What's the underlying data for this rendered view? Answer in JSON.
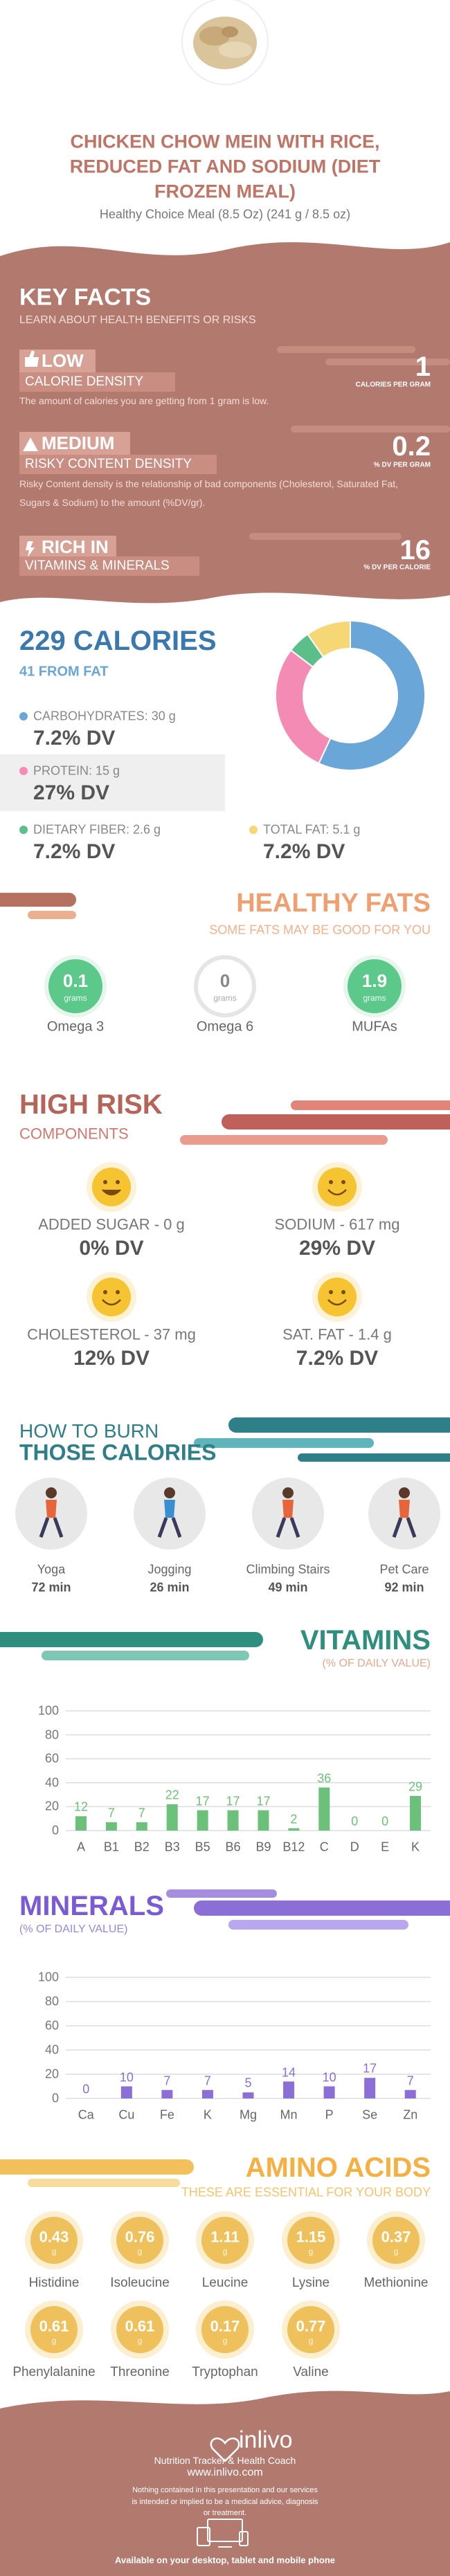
{
  "header": {
    "title_lines": [
      "CHICKEN CHOW MEIN WITH RICE,",
      "REDUCED FAT AND SODIUM (DIET",
      "FROZEN MEAL)"
    ],
    "subtitle": "Healthy Choice Meal (8.5 Oz) (241 g / 8.5 oz)"
  },
  "key_facts": {
    "title": "KEY FACTS",
    "subtitle": "LEARN ABOUT HEALTH BENEFITS OR RISKS",
    "rows": [
      {
        "level": "LOW",
        "label": "CALORIE DENSITY",
        "description": "The amount of calories you are getting from 1 gram is low.",
        "value": 1,
        "unit": "CALORIES PER GRAM"
      },
      {
        "level": "MEDIUM",
        "label": "RISKY CONTENT DENSITY",
        "description": "Risky Content density is the relationship of bad components (Cholesterol, Saturated Fat, Sugars & Sodium) to the amount (%DV/gr).",
        "value": 0.2,
        "unit": "% DV PER GRAM"
      },
      {
        "level": "RICH  IN",
        "label": "VITAMINS & MINERALS",
        "value": 16,
        "unit": "% DV PER CALORIE"
      }
    ]
  },
  "calories": {
    "title": "229 CALORIES",
    "subtitle": "41 FROM FAT",
    "items": [
      {
        "label": "CARBOHYDRATES: 30 g",
        "dv": "7.2% DV"
      },
      {
        "label": "PROTEIN: 15 g",
        "dv": "27% DV"
      },
      {
        "label": "DIETARY FIBER: 2.6 g",
        "dv": "7.2% DV"
      },
      {
        "label": "TOTAL FAT: 5.1 g",
        "dv": "7.2% DV"
      }
    ]
  },
  "healthy_fats": {
    "title": "HEALTHY FATS",
    "subtitle": "SOME FATS MAY BE GOOD FOR YOU",
    "unit": "grams",
    "items": [
      {
        "name": "Omega 3",
        "value": 0.1
      },
      {
        "name": "Omega 6",
        "value": 0
      },
      {
        "name": "MUFAs",
        "value": 1.9
      }
    ]
  },
  "high_risk": {
    "title": "HIGH RISK",
    "subtitle": "COMPONENTS",
    "items": [
      {
        "label": "ADDED SUGAR - 0 g",
        "dv": "0% DV"
      },
      {
        "label": "SODIUM - 617 mg",
        "dv": "29% DV"
      },
      {
        "label": "CHOLESTEROL - 37 mg",
        "dv": "12% DV"
      },
      {
        "label": "SAT. FAT - 1.4 g",
        "dv": "7.2% DV"
      }
    ]
  },
  "burn": {
    "title_lines": [
      "HOW TO BURN",
      "THOSE CALORIES"
    ],
    "items": [
      {
        "name": "Yoga",
        "time": "72 min"
      },
      {
        "name": "Jogging",
        "time": "26 min"
      },
      {
        "name": "Climbing Stairs",
        "time": "49 min"
      },
      {
        "name": "Pet Care",
        "time": "92 min"
      }
    ]
  },
  "chart_data": [
    {
      "type": "pie",
      "donut": true,
      "values": [
        30,
        15,
        2.6,
        5.1
      ],
      "colors": [
        "#6aa6d8",
        "#f38bb4",
        "#5cbf8a",
        "#f6d776"
      ]
    },
    {
      "type": "bar",
      "title": "VITAMINS",
      "subtitle": "(% OF DAILY VALUE)",
      "categories": [
        "A",
        "B1",
        "B2",
        "B3",
        "B5",
        "B6",
        "B9",
        "B12",
        "C",
        "D",
        "E",
        "K"
      ],
      "values": [
        12,
        7,
        7,
        22,
        17,
        17,
        17,
        2,
        36,
        0,
        0,
        29
      ],
      "color": "#6cc17a",
      "ylim": [
        0,
        100
      ],
      "yticks": [
        0,
        20,
        40,
        60,
        80,
        100
      ],
      "grid": true
    },
    {
      "type": "bar",
      "title": "MINERALS",
      "subtitle": "(% OF DAILY VALUE)",
      "categories": [
        "Ca",
        "Cu",
        "Fe",
        "K",
        "Mg",
        "Mn",
        "P",
        "Se",
        "Zn"
      ],
      "values": [
        0,
        10,
        7,
        7,
        5,
        14,
        10,
        17,
        7
      ],
      "color": "#8b6fd6",
      "ylim": [
        0,
        100
      ],
      "yticks": [
        0,
        20,
        40,
        60,
        80,
        100
      ],
      "grid": true
    }
  ],
  "amino_acids": {
    "title": "AMINO ACIDS",
    "subtitle": "THESE ARE ESSENTIAL FOR YOUR BODY",
    "unit": "g",
    "items": [
      {
        "name": "Histidine",
        "value": 0.43
      },
      {
        "name": "Isoleucine",
        "value": 0.76
      },
      {
        "name": "Leucine",
        "value": 1.11
      },
      {
        "name": "Lysine",
        "value": 1.15
      },
      {
        "name": "Methionine",
        "value": 0.37
      },
      {
        "name": "Phenylalanine",
        "value": 0.61
      },
      {
        "name": "Threonine",
        "value": 0.61
      },
      {
        "name": "Tryptophan",
        "value": 0.17
      },
      {
        "name": "Valine",
        "value": 0.77
      }
    ]
  },
  "footer": {
    "brand": "inlivo",
    "tagline": "Nutrition Tracker & Health Coach",
    "url": "www.inlivo.com",
    "disclaimer": "Nothing contained in this presentation and our services is intended or implied to be a medical advice, diagnosis or treatment.",
    "availability": "Available on your desktop, tablet and mobile phone"
  }
}
